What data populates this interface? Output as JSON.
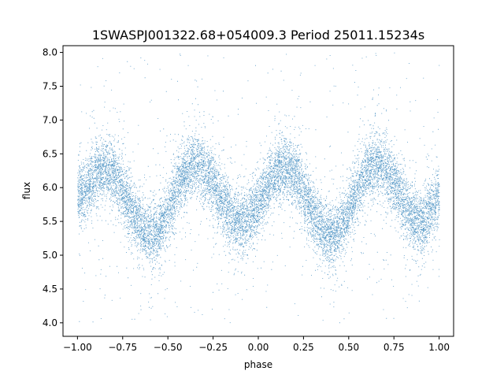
{
  "chart_data": {
    "type": "scatter",
    "title": "1SWASPJ001322.68+054009.3 Period 25011.15234s",
    "xlabel": "phase",
    "ylabel": "flux",
    "xlim": [
      -1.08,
      1.08
    ],
    "ylim": [
      3.8,
      8.1
    ],
    "x_ticks": [
      -1.0,
      -0.75,
      -0.5,
      -0.25,
      0.0,
      0.25,
      0.5,
      0.75,
      1.0
    ],
    "x_tick_labels": [
      "−1.00",
      "−0.75",
      "−0.50",
      "−0.25",
      "0.00",
      "0.25",
      "0.50",
      "0.75",
      "1.00"
    ],
    "y_ticks": [
      4.0,
      4.5,
      5.0,
      5.5,
      6.0,
      6.5,
      7.0,
      7.5,
      8.0
    ],
    "y_tick_labels": [
      "4.0",
      "4.5",
      "5.0",
      "5.5",
      "6.0",
      "6.5",
      "7.0",
      "7.5",
      "8.0"
    ],
    "grid": false,
    "point_color": "#1f77b4",
    "series": [
      {
        "x_range": [
          -1.0,
          1.0
        ],
        "period_in_phase": 0.5,
        "median_curve": {
          "phase": [
            -1.0,
            -0.85,
            -0.6,
            -0.35,
            -0.1,
            0.15,
            0.4,
            0.65,
            0.9,
            1.0
          ],
          "flux": [
            5.9,
            6.3,
            5.3,
            6.35,
            5.5,
            6.3,
            5.3,
            6.35,
            5.5,
            5.85
          ]
        },
        "scatter_sigma": 0.22,
        "outlier_range": [
          4.0,
          8.0
        ],
        "n_points": 14000
      }
    ]
  }
}
